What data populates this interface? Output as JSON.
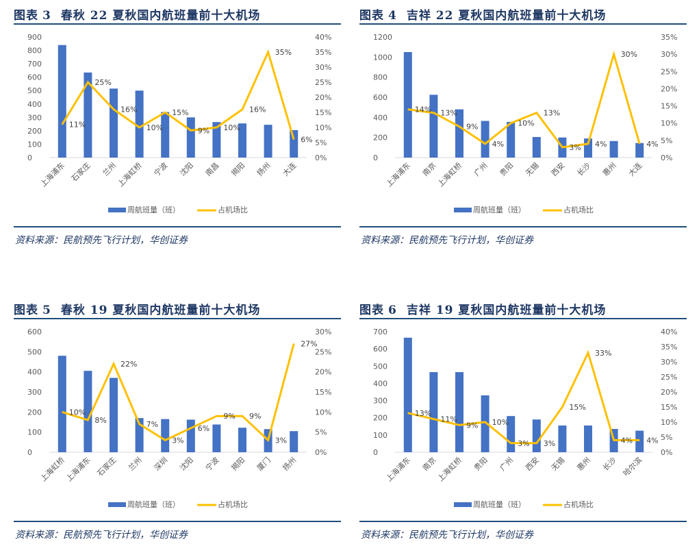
{
  "colors": {
    "bar": "#4472C4",
    "line": "#FFC000",
    "title": "#1F3864",
    "rule": "#1F4E79"
  },
  "chart_data": [
    {
      "type": "bar+line",
      "fig_label": "图表",
      "fig_num": "3",
      "title": "春秋 22 夏秋国内航班量前十大机场",
      "categories": [
        "上海浦东",
        "石家庄",
        "兰州",
        "上海虹桥",
        "宁波",
        "沈阳",
        "南昌",
        "揭阳",
        "扬州",
        "大连"
      ],
      "series": [
        {
          "name": "周航班量（班）",
          "axis": "left",
          "kind": "bar",
          "values": [
            840,
            635,
            515,
            500,
            340,
            300,
            265,
            255,
            245,
            205
          ]
        },
        {
          "name": "占机场比",
          "axis": "right",
          "kind": "line",
          "values": [
            11,
            25,
            16,
            10,
            15,
            9,
            10,
            16,
            35,
            6
          ],
          "labels": [
            "11%",
            "25%",
            "16%",
            "10%",
            "15%",
            "9%",
            "10%",
            "16%",
            "35%",
            "6%"
          ]
        }
      ],
      "ylim": [
        0,
        900
      ],
      "yticks": [
        "0",
        "100",
        "200",
        "300",
        "400",
        "500",
        "600",
        "700",
        "800",
        "900"
      ],
      "y2lim": [
        0,
        40
      ],
      "y2ticks": [
        "0%",
        "5%",
        "10%",
        "15%",
        "20%",
        "25%",
        "30%",
        "35%",
        "40%"
      ],
      "legend": "bottom",
      "source": "资料来源：民航预先飞行计划，华创证券"
    },
    {
      "type": "bar+line",
      "fig_label": "图表",
      "fig_num": "4",
      "title": "吉祥 22 夏秋国内航班量前十大机场",
      "categories": [
        "上海浦东",
        "南京",
        "上海虹桥",
        "广州",
        "贵阳",
        "无锡",
        "西安",
        "长沙",
        "惠州",
        "大连"
      ],
      "series": [
        {
          "name": "周航班量（班）",
          "axis": "left",
          "kind": "bar",
          "values": [
            1050,
            625,
            480,
            365,
            355,
            205,
            200,
            190,
            165,
            145
          ]
        },
        {
          "name": "占机场比",
          "axis": "right",
          "kind": "line",
          "values": [
            14,
            13,
            9,
            4,
            10,
            13,
            3,
            4,
            30,
            4
          ],
          "labels": [
            "14%",
            "13%",
            "9%",
            "4%",
            "10%",
            "13%",
            "3%",
            "4%",
            "30%",
            "4%"
          ]
        }
      ],
      "ylim": [
        0,
        1200
      ],
      "yticks": [
        "0",
        "200",
        "400",
        "600",
        "800",
        "1000",
        "1200"
      ],
      "y2lim": [
        0,
        35
      ],
      "y2ticks": [
        "0%",
        "5%",
        "10%",
        "15%",
        "20%",
        "25%",
        "30%",
        "35%"
      ],
      "legend": "bottom",
      "source": "资料来源：民航预先飞行计划，华创证券"
    },
    {
      "type": "bar+line",
      "fig_label": "图表",
      "fig_num": "5",
      "title": "春秋 19 夏秋国内航班量前十大机场",
      "categories": [
        "上海虹桥",
        "上海浦东",
        "石家庄",
        "兰州",
        "深圳",
        "沈阳",
        "宁波",
        "揭阳",
        "厦门",
        "扬州"
      ],
      "series": [
        {
          "name": "周航班量（班）",
          "axis": "left",
          "kind": "bar",
          "values": [
            480,
            405,
            370,
            170,
            165,
            162,
            138,
            122,
            115,
            105
          ]
        },
        {
          "name": "占机场比",
          "axis": "right",
          "kind": "line",
          "values": [
            10,
            8,
            22,
            7,
            3,
            6,
            9,
            9,
            3,
            27
          ],
          "labels": [
            "10%",
            "8%",
            "22%",
            "7%",
            "3%",
            "6%",
            "9%",
            "9%",
            "3%",
            "27%"
          ]
        }
      ],
      "ylim": [
        0,
        600
      ],
      "yticks": [
        "0",
        "100",
        "200",
        "300",
        "400",
        "500",
        "600"
      ],
      "y2lim": [
        0,
        30
      ],
      "y2ticks": [
        "0%",
        "5%",
        "10%",
        "15%",
        "20%",
        "25%",
        "30%"
      ],
      "legend": "bottom",
      "source": "资料来源：民航预先飞行计划，华创证券"
    },
    {
      "type": "bar+line",
      "fig_label": "图表",
      "fig_num": "6",
      "title": "吉祥 19 夏秋国内航班量前十大机场",
      "categories": [
        "上海浦东",
        "南京",
        "上海虹桥",
        "贵阳",
        "广州",
        "西安",
        "无锡",
        "惠州",
        "长沙",
        "哈尔滨"
      ],
      "series": [
        {
          "name": "周航班量（班）",
          "axis": "left",
          "kind": "bar",
          "values": [
            665,
            465,
            465,
            330,
            210,
            190,
            155,
            155,
            135,
            125
          ]
        },
        {
          "name": "占机场比",
          "axis": "right",
          "kind": "line",
          "values": [
            13,
            11,
            9,
            10,
            3,
            3,
            15,
            33,
            4,
            4
          ],
          "labels": [
            "13%",
            "11%",
            "9%",
            "10%",
            "3%",
            "3%",
            "15%",
            "33%",
            "4%",
            "4%"
          ]
        }
      ],
      "ylim": [
        0,
        700
      ],
      "yticks": [
        "0",
        "100",
        "200",
        "300",
        "400",
        "500",
        "600",
        "700"
      ],
      "y2lim": [
        0,
        40
      ],
      "y2ticks": [
        "0%",
        "5%",
        "10%",
        "15%",
        "20%",
        "25%",
        "30%",
        "35%",
        "40%"
      ],
      "legend": "bottom",
      "source": "资料来源：民航预先飞行计划，华创证券"
    }
  ]
}
